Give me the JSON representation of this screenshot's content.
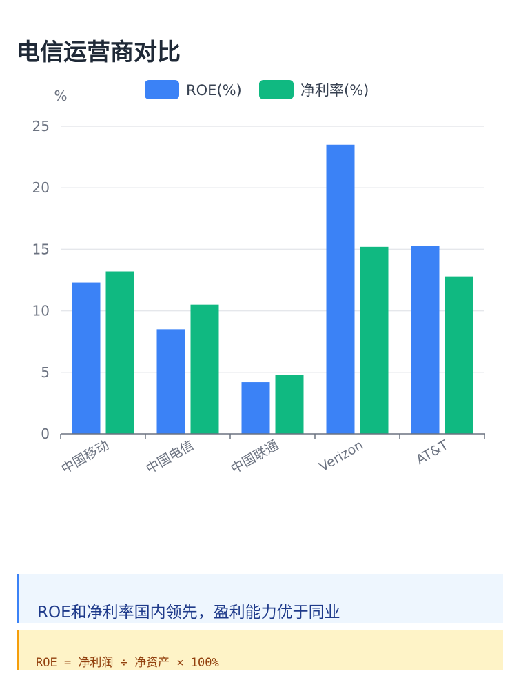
{
  "page": {
    "title": "电信运营商对比"
  },
  "chart_data": {
    "type": "bar",
    "title": "",
    "ylabel": "%",
    "xlabel": "",
    "ylim": [
      0,
      25
    ],
    "yticks": [
      0,
      5,
      10,
      15,
      20,
      25
    ],
    "grid": true,
    "legend_position": "top",
    "categories": [
      "中国移动",
      "中国电信",
      "中国联通",
      "Verizon",
      "AT&T"
    ],
    "series": [
      {
        "name": "ROE(%)",
        "color": "#3b82f6",
        "values": [
          12.3,
          8.5,
          4.2,
          23.5,
          15.3
        ]
      },
      {
        "name": "净利率(%)",
        "color": "#10b981",
        "values": [
          13.2,
          10.5,
          4.8,
          15.2,
          12.8
        ]
      }
    ]
  },
  "callout": {
    "text": "ROE和净利率国内领先，盈利能力优于同业"
  },
  "formula": {
    "text": "ROE = 净利润 ÷ 净资产 × 100%"
  }
}
